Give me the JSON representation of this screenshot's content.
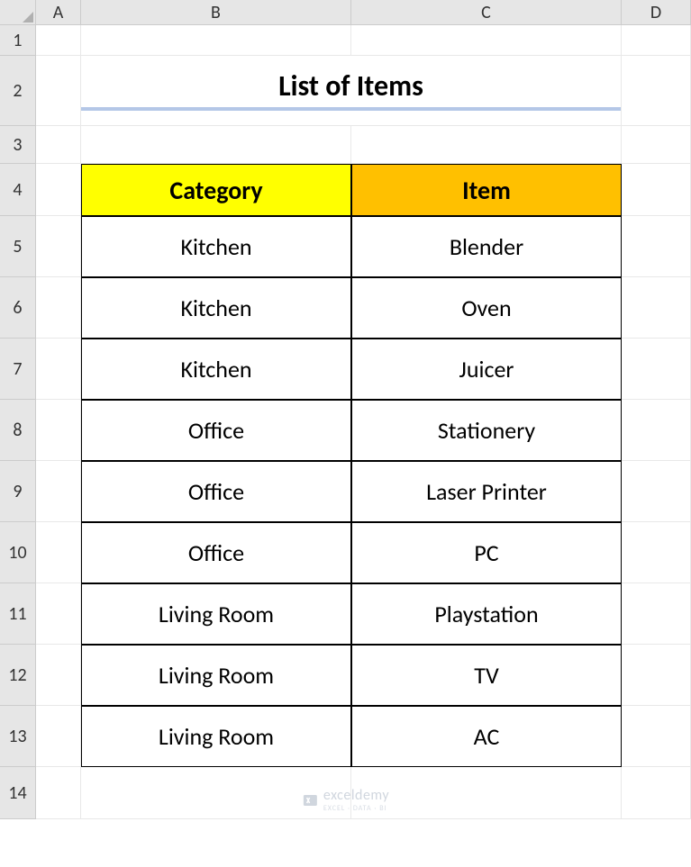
{
  "columns": {
    "labels": [
      "A",
      "B",
      "C",
      "D"
    ],
    "widths": [
      50,
      300,
      300,
      77
    ]
  },
  "rows": {
    "labels": [
      "1",
      "2",
      "3",
      "4",
      "5",
      "6",
      "7",
      "8",
      "9",
      "10",
      "11",
      "12",
      "13",
      "14"
    ],
    "heights": [
      34,
      78,
      42,
      58,
      68,
      68,
      68,
      68,
      68,
      68,
      68,
      68,
      68,
      58
    ]
  },
  "title": "List of Items",
  "table": {
    "header": {
      "category": {
        "label": "Category",
        "bg": "#ffff00"
      },
      "item": {
        "label": "Item",
        "bg": "#ffc000"
      }
    },
    "rows": [
      {
        "category": "Kitchen",
        "item": "Blender"
      },
      {
        "category": "Kitchen",
        "item": "Oven"
      },
      {
        "category": "Kitchen",
        "item": "Juicer"
      },
      {
        "category": "Office",
        "item": "Stationery"
      },
      {
        "category": "Office",
        "item": "Laser Printer"
      },
      {
        "category": "Office",
        "item": "PC"
      },
      {
        "category": "Living Room",
        "item": "Playstation"
      },
      {
        "category": "Living Room",
        "item": "TV"
      },
      {
        "category": "Living Room",
        "item": "AC"
      }
    ]
  },
  "watermark": {
    "text": "exceldemy",
    "sub": "EXCEL · DATA · BI"
  },
  "colors": {
    "grid_header_bg": "#e6e6e6",
    "grid_border": "#cccccc",
    "cell_border": "#e8e8e8",
    "title_underline": "#b4c7e7",
    "table_border": "#000000",
    "watermark": "#d0d6de"
  }
}
